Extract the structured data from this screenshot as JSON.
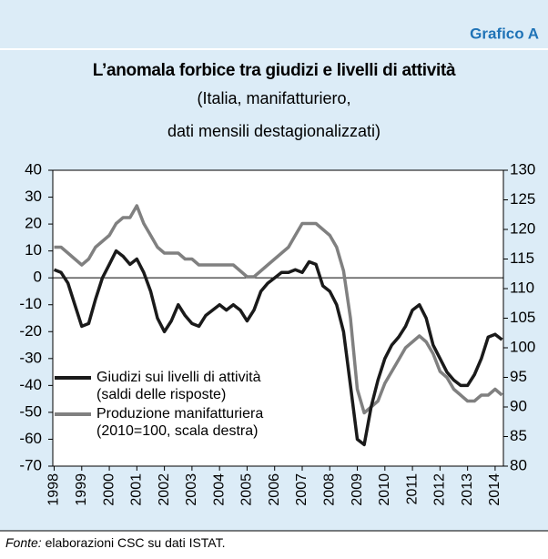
{
  "chart_data": {
    "type": "line",
    "badge": "Grafico A",
    "title": "L’anomala forbice tra giudizi e livelli di attività",
    "subtitle": [
      "(Italia, manifatturiero,",
      "dati mensili destagionalizzati)"
    ],
    "source": {
      "label": "Fonte:",
      "text": "elaborazioni CSC su dati ISTAT."
    },
    "x": [
      1998,
      1998.25,
      1998.5,
      1998.75,
      1999,
      1999.25,
      1999.5,
      1999.75,
      2000,
      2000.25,
      2000.5,
      2000.75,
      2001,
      2001.25,
      2001.5,
      2001.75,
      2002,
      2002.25,
      2002.5,
      2002.75,
      2003,
      2003.25,
      2003.5,
      2003.75,
      2004,
      2004.25,
      2004.5,
      2004.75,
      2005,
      2005.25,
      2005.5,
      2005.75,
      2006,
      2006.25,
      2006.5,
      2006.75,
      2007,
      2007.25,
      2007.5,
      2007.75,
      2008,
      2008.25,
      2008.5,
      2008.75,
      2009,
      2009.25,
      2009.5,
      2009.75,
      2010,
      2010.25,
      2010.5,
      2010.75,
      2011,
      2011.25,
      2011.5,
      2011.75,
      2012,
      2012.25,
      2012.5,
      2012.75,
      2013,
      2013.25,
      2013.5,
      2013.75,
      2014,
      2014.25
    ],
    "series": [
      {
        "name": "Giudizi sui livelli di attività\n(saldi delle risposte)",
        "color": "#1a1a1a",
        "axis": "y",
        "values": [
          3,
          2,
          -2,
          -10,
          -18,
          -17,
          -8,
          0,
          5,
          10,
          8,
          5,
          7,
          2,
          -5,
          -15,
          -20,
          -16,
          -10,
          -14,
          -17,
          -18,
          -14,
          -12,
          -10,
          -12,
          -10,
          -12,
          -16,
          -12,
          -5,
          -2,
          0,
          2,
          2,
          3,
          2,
          6,
          5,
          -3,
          -5,
          -10,
          -20,
          -40,
          -60,
          -62,
          -48,
          -38,
          -30,
          -25,
          -22,
          -18,
          -12,
          -10,
          -15,
          -25,
          -30,
          -35,
          -38,
          -40,
          -40,
          -36,
          -30,
          -22,
          -21,
          -23
        ]
      },
      {
        "name": "Produzione manifatturiera\n(2010=100, scala destra)",
        "color": "#808080",
        "axis": "y2",
        "values": [
          117,
          117,
          116,
          115,
          114,
          115,
          117,
          118,
          119,
          121,
          122,
          122,
          124,
          121,
          119,
          117,
          116,
          116,
          116,
          115,
          115,
          114,
          114,
          114,
          114,
          114,
          114,
          113,
          112,
          112,
          113,
          114,
          115,
          116,
          117,
          119,
          121,
          121,
          121,
          120,
          119,
          117,
          113,
          105,
          93,
          89,
          90,
          91,
          94,
          96,
          98,
          100,
          101,
          102,
          101,
          99,
          96,
          95,
          93,
          92,
          91,
          91,
          92,
          92,
          93,
          92
        ]
      }
    ],
    "xlim": [
      1997.95,
      2014.3
    ],
    "xticks": [
      1998,
      1999,
      2000,
      2001,
      2002,
      2003,
      2004,
      2005,
      2006,
      2007,
      2008,
      2009,
      2010,
      2011,
      2012,
      2013,
      2014
    ],
    "ylim": [
      -70,
      40
    ],
    "yticks": [
      -70,
      -60,
      -50,
      -40,
      -30,
      -20,
      -10,
      0,
      10,
      20,
      30,
      40
    ],
    "y2lim": [
      80,
      130
    ],
    "y2ticks": [
      80,
      85,
      90,
      95,
      100,
      105,
      110,
      115,
      120,
      125,
      130
    ]
  }
}
